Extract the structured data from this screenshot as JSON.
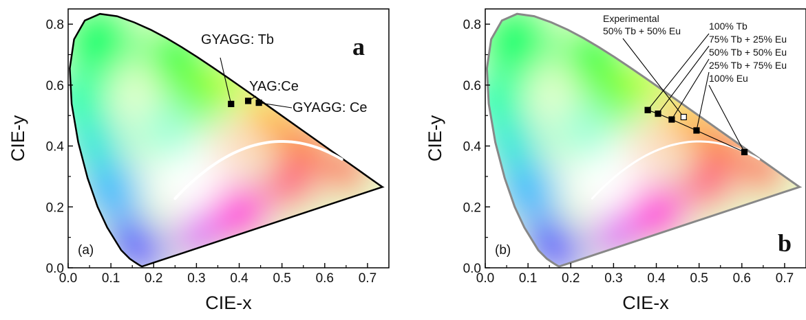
{
  "chart_data": [
    {
      "type": "scatter",
      "panel_tag": "(a)",
      "panel_letter": "a",
      "xlabel": "CIE-x",
      "ylabel": "CIE-y",
      "xlim": [
        0.0,
        0.75
      ],
      "ylim": [
        0.0,
        0.85
      ],
      "x_ticks": [
        "0.0",
        "0.1",
        "0.2",
        "0.3",
        "0.4",
        "0.5",
        "0.6",
        "0.7"
      ],
      "y_ticks": [
        "0.0",
        "0.2",
        "0.4",
        "0.6",
        "0.8"
      ],
      "locus_stroke": "#000000",
      "points": [
        {
          "label": "GYAGG: Tb",
          "x": 0.381,
          "y": 0.538
        },
        {
          "label": "YAG:Ce",
          "x": 0.421,
          "y": 0.548
        },
        {
          "label": "GYAGG: Ce",
          "x": 0.446,
          "y": 0.542
        }
      ],
      "planckian_locus": {
        "color": "#ffffff",
        "x_from": 0.25,
        "x_to": 0.64
      }
    },
    {
      "type": "scatter",
      "panel_tag": "(b)",
      "panel_letter": "b",
      "xlabel": "CIE-x",
      "ylabel": "CIE-y",
      "xlim": [
        0.0,
        0.75
      ],
      "ylim": [
        0.0,
        0.85
      ],
      "x_ticks": [
        "0.0",
        "0.1",
        "0.2",
        "0.3",
        "0.4",
        "0.5",
        "0.6",
        "0.7"
      ],
      "y_ticks": [
        "0.0",
        "0.2",
        "0.4",
        "0.6",
        "0.8"
      ],
      "locus_stroke": "#888888",
      "points": [
        {
          "label": "100% Tb",
          "x": 0.38,
          "y": 0.518,
          "filled": true
        },
        {
          "label": "75% Tb + 25% Eu",
          "x": 0.404,
          "y": 0.506,
          "filled": true
        },
        {
          "label": "50% Tb + 50% Eu",
          "x": 0.436,
          "y": 0.487,
          "filled": true
        },
        {
          "label": "25% Tb + 75% Eu",
          "x": 0.494,
          "y": 0.451,
          "filled": true
        },
        {
          "label": "100% Eu",
          "x": 0.606,
          "y": 0.38,
          "filled": true
        },
        {
          "label": "Experimental\n50% Tb + 50% Eu",
          "x": 0.464,
          "y": 0.495,
          "filled": false
        }
      ],
      "planckian_locus": {
        "color": "#ffffff",
        "x_from": 0.25,
        "x_to": 0.64
      }
    }
  ]
}
